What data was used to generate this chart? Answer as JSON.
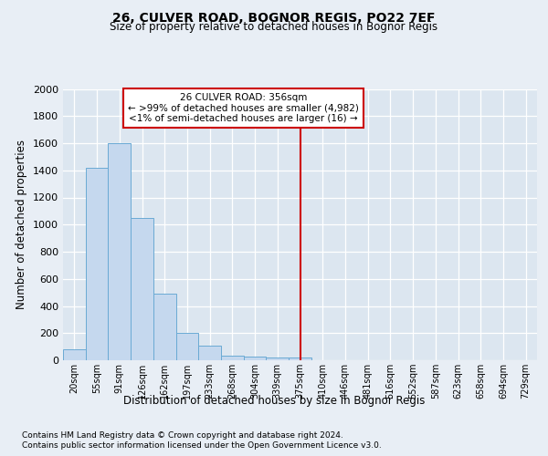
{
  "title1": "26, CULVER ROAD, BOGNOR REGIS, PO22 7EF",
  "title2": "Size of property relative to detached houses in Bognor Regis",
  "xlabel": "Distribution of detached houses by size in Bognor Regis",
  "ylabel": "Number of detached properties",
  "bin_labels": [
    "20sqm",
    "55sqm",
    "91sqm",
    "126sqm",
    "162sqm",
    "197sqm",
    "233sqm",
    "268sqm",
    "304sqm",
    "339sqm",
    "375sqm",
    "410sqm",
    "446sqm",
    "481sqm",
    "516sqm",
    "552sqm",
    "587sqm",
    "623sqm",
    "658sqm",
    "694sqm",
    "729sqm"
  ],
  "bar_values": [
    80,
    1420,
    1600,
    1050,
    490,
    200,
    105,
    35,
    25,
    20,
    20,
    0,
    0,
    0,
    0,
    0,
    0,
    0,
    0,
    0,
    0
  ],
  "bar_color": "#c5d8ee",
  "bar_edge_color": "#6aaad4",
  "vline_x_index": 10,
  "vline_color": "#cc0000",
  "annotation_title": "26 CULVER ROAD: 356sqm",
  "annotation_line1": "← >99% of detached houses are smaller (4,982)",
  "annotation_line2": "<1% of semi-detached houses are larger (16) →",
  "annotation_box_color": "#cc0000",
  "ylim": [
    0,
    2000
  ],
  "yticks": [
    0,
    200,
    400,
    600,
    800,
    1000,
    1200,
    1400,
    1600,
    1800,
    2000
  ],
  "bg_color": "#e8eef5",
  "plot_bg_color": "#dce6f0",
  "footer1": "Contains HM Land Registry data © Crown copyright and database right 2024.",
  "footer2": "Contains public sector information licensed under the Open Government Licence v3.0."
}
